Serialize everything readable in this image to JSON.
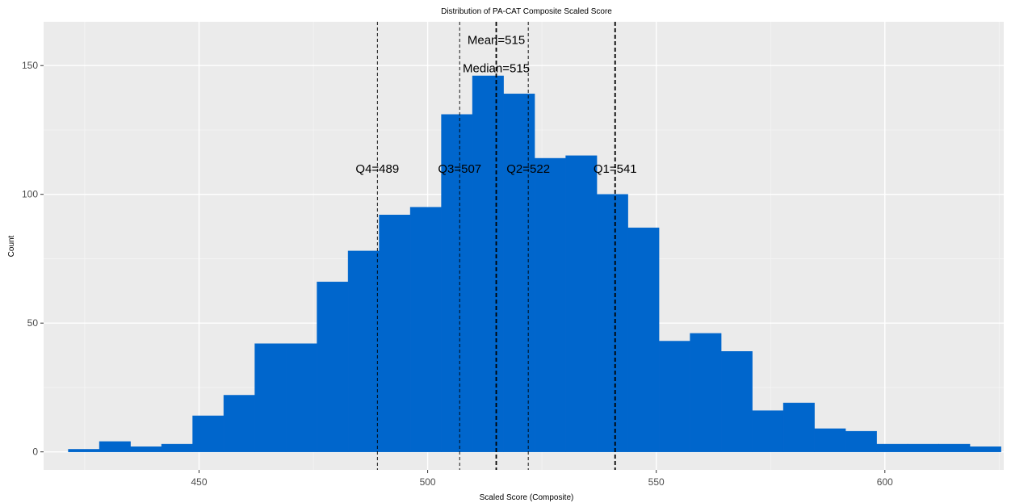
{
  "chart_data": {
    "type": "bar",
    "title": "Distribution of PA-CAT Composite Scaled Score",
    "xlabel": "Scaled Score (Composite)",
    "ylabel": "Count",
    "xlim": [
      416,
      626
    ],
    "ylim": [
      -7,
      167
    ],
    "xticks": [
      450,
      500,
      550,
      600
    ],
    "yticks": [
      0,
      50,
      100,
      150
    ],
    "grid": true,
    "background": "#EBEBEB",
    "bar_color": "#0066CC",
    "bin_width": 6.8,
    "bins": [
      {
        "start": 421.4,
        "end": 428.2,
        "count": 1
      },
      {
        "start": 428.2,
        "end": 435.0,
        "count": 4
      },
      {
        "start": 435.0,
        "end": 441.8,
        "count": 2
      },
      {
        "start": 441.8,
        "end": 448.6,
        "count": 3
      },
      {
        "start": 448.6,
        "end": 455.4,
        "count": 14
      },
      {
        "start": 455.4,
        "end": 462.2,
        "count": 22
      },
      {
        "start": 462.2,
        "end": 469.0,
        "count": 42
      },
      {
        "start": 469.0,
        "end": 475.8,
        "count": 42
      },
      {
        "start": 475.8,
        "end": 482.6,
        "count": 66
      },
      {
        "start": 482.6,
        "end": 489.4,
        "count": 78
      },
      {
        "start": 489.4,
        "end": 496.2,
        "count": 92
      },
      {
        "start": 496.2,
        "end": 503.0,
        "count": 95
      },
      {
        "start": 503.0,
        "end": 509.8,
        "count": 131
      },
      {
        "start": 509.8,
        "end": 516.6,
        "count": 146
      },
      {
        "start": 516.6,
        "end": 523.4,
        "count": 139
      },
      {
        "start": 523.4,
        "end": 530.2,
        "count": 114
      },
      {
        "start": 530.2,
        "end": 537.0,
        "count": 115
      },
      {
        "start": 537.0,
        "end": 543.8,
        "count": 100
      },
      {
        "start": 543.8,
        "end": 550.6,
        "count": 87
      },
      {
        "start": 550.6,
        "end": 557.4,
        "count": 43
      },
      {
        "start": 557.4,
        "end": 564.2,
        "count": 46
      },
      {
        "start": 564.2,
        "end": 571.0,
        "count": 39
      },
      {
        "start": 571.0,
        "end": 577.8,
        "count": 16
      },
      {
        "start": 577.8,
        "end": 584.6,
        "count": 19
      },
      {
        "start": 584.6,
        "end": 591.4,
        "count": 9
      },
      {
        "start": 591.4,
        "end": 598.2,
        "count": 8
      },
      {
        "start": 598.2,
        "end": 605.0,
        "count": 3
      },
      {
        "start": 605.0,
        "end": 611.8,
        "count": 3
      },
      {
        "start": 611.8,
        "end": 618.6,
        "count": 3
      },
      {
        "start": 618.6,
        "end": 625.4,
        "count": 2
      }
    ],
    "reference_lines": [
      {
        "label": "Q4=489",
        "x": 489,
        "style": "thin-dashed",
        "label_y": 110
      },
      {
        "label": "Q3=507",
        "x": 507,
        "style": "thin-dashed",
        "label_y": 110
      },
      {
        "label": "Mean=515",
        "x": 515,
        "style": "thick-dashed",
        "label_y": 160
      },
      {
        "label": "Median=515",
        "x": 515,
        "style": "thick-dashed",
        "label_y": 149
      },
      {
        "label": "Q2=522",
        "x": 522,
        "style": "thin-dashed",
        "label_y": 110
      },
      {
        "label": "Q1=541",
        "x": 541,
        "style": "thick-dashed",
        "label_y": 110
      }
    ]
  }
}
